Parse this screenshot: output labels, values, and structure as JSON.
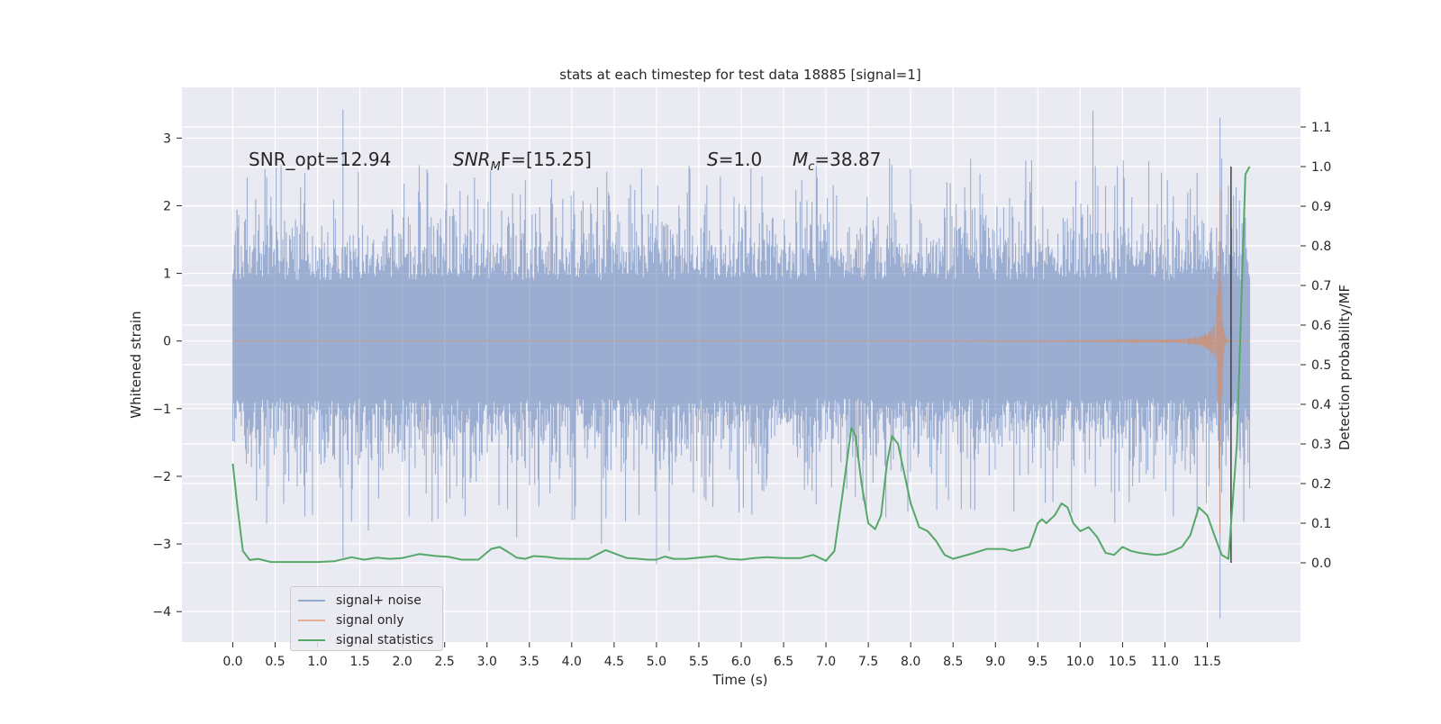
{
  "chart_data": {
    "type": "line",
    "title": "stats at each timestep for test data 18885 [signal=1]",
    "xlabel": "Time (s)",
    "ylabel_left": "Whitened strain",
    "ylabel_right": "Detection probability/MF",
    "xlim": [
      -0.6,
      12.6
    ],
    "ylim_left": [
      -4.45,
      3.75
    ],
    "ylim_right": [
      -0.2,
      1.2
    ],
    "x_ticks": [
      "0.0",
      "0.5",
      "1.0",
      "1.5",
      "2.0",
      "2.5",
      "3.0",
      "3.5",
      "4.0",
      "4.5",
      "5.0",
      "5.5",
      "6.0",
      "6.5",
      "7.0",
      "7.5",
      "8.0",
      "8.5",
      "9.0",
      "9.5",
      "10.0",
      "10.5",
      "11.0",
      "11.5"
    ],
    "y_ticks_left": [
      "3",
      "2",
      "1",
      "0",
      "−1",
      "−2",
      "−3",
      "−4"
    ],
    "y_ticks_right": [
      "1.1",
      "1.0",
      "0.9",
      "0.8",
      "0.7",
      "0.6",
      "0.5",
      "0.4",
      "0.3",
      "0.2",
      "0.1",
      "0.0"
    ],
    "grid": true,
    "legend_placement": "lower-left",
    "annotations": {
      "snr_opt": "SNR_opt=12.94",
      "snr_mf_main": "SNR",
      "snr_mf_sub": "M",
      "snr_mf_rest": "F=[15.25]",
      "s_main": "S",
      "s_rest": "=1.0",
      "mc_main": "M",
      "mc_sub": "c",
      "mc_rest": "=38.87"
    },
    "series": [
      {
        "name": "signal+ noise",
        "color": "#4c72b0",
        "axis": "left",
        "description_values": {
          "t_start": 0.0,
          "t_end": 12.0,
          "typical_range": [
            -1.3,
            1.5
          ],
          "max": 3.42,
          "min": -4.1
        },
        "spikes": [
          [
            1.3,
            3.42
          ],
          [
            1.3,
            -3.2
          ],
          [
            1.6,
            -2.8
          ],
          [
            4.35,
            -3.0
          ],
          [
            5.0,
            -3.3
          ],
          [
            5.15,
            -3.1
          ],
          [
            10.15,
            3.4
          ],
          [
            11.65,
            3.3
          ],
          [
            11.65,
            -4.1
          ],
          [
            0.4,
            -2.7
          ],
          [
            7.75,
            2.7
          ],
          [
            2.2,
            2.6
          ],
          [
            1.3,
            2.3
          ],
          [
            3.35,
            -2.9
          ]
        ]
      },
      {
        "name": "signal only",
        "color": "#dd8452",
        "axis": "left",
        "description_values": {
          "t_start": 0.0,
          "t_end": 12.0,
          "peak_time": 11.65,
          "peak_amplitude": 3.0
        }
      },
      {
        "name": "signal statistics",
        "color": "#55a868",
        "axis": "right",
        "x": [
          0.0,
          0.05,
          0.12,
          0.2,
          0.3,
          0.45,
          0.6,
          0.8,
          1.0,
          1.2,
          1.4,
          1.55,
          1.7,
          1.85,
          2.0,
          2.2,
          2.4,
          2.55,
          2.7,
          2.9,
          3.05,
          3.15,
          3.25,
          3.35,
          3.45,
          3.55,
          3.7,
          3.85,
          4.0,
          4.2,
          4.4,
          4.55,
          4.65,
          4.75,
          4.9,
          5.0,
          5.1,
          5.2,
          5.35,
          5.5,
          5.7,
          5.85,
          6.0,
          6.15,
          6.3,
          6.5,
          6.7,
          6.85,
          7.0,
          7.1,
          7.2,
          7.3,
          7.35,
          7.42,
          7.5,
          7.58,
          7.65,
          7.72,
          7.78,
          7.85,
          7.9,
          8.0,
          8.1,
          8.2,
          8.3,
          8.4,
          8.5,
          8.6,
          8.75,
          8.9,
          9.0,
          9.1,
          9.2,
          9.3,
          9.4,
          9.5,
          9.55,
          9.6,
          9.7,
          9.78,
          9.85,
          9.92,
          10.0,
          10.1,
          10.2,
          10.3,
          10.4,
          10.5,
          10.6,
          10.7,
          10.8,
          10.9,
          11.0,
          11.1,
          11.2,
          11.3,
          11.4,
          11.5,
          11.6,
          11.67,
          11.75,
          11.85,
          11.95,
          12.0
        ],
        "y": [
          0.25,
          0.15,
          0.03,
          0.007,
          0.01,
          0.002,
          0.002,
          0.002,
          0.002,
          0.004,
          0.014,
          0.008,
          0.013,
          0.01,
          0.012,
          0.022,
          0.017,
          0.015,
          0.008,
          0.008,
          0.035,
          0.04,
          0.027,
          0.013,
          0.01,
          0.017,
          0.015,
          0.011,
          0.01,
          0.01,
          0.032,
          0.02,
          0.012,
          0.011,
          0.008,
          0.008,
          0.016,
          0.01,
          0.01,
          0.013,
          0.017,
          0.01,
          0.008,
          0.012,
          0.014,
          0.012,
          0.012,
          0.02,
          0.005,
          0.03,
          0.18,
          0.34,
          0.32,
          0.2,
          0.1,
          0.085,
          0.12,
          0.25,
          0.32,
          0.3,
          0.25,
          0.15,
          0.09,
          0.08,
          0.055,
          0.02,
          0.01,
          0.016,
          0.025,
          0.035,
          0.035,
          0.035,
          0.03,
          0.035,
          0.04,
          0.1,
          0.11,
          0.1,
          0.12,
          0.15,
          0.14,
          0.1,
          0.08,
          0.09,
          0.065,
          0.025,
          0.02,
          0.04,
          0.03,
          0.025,
          0.022,
          0.02,
          0.022,
          0.03,
          0.04,
          0.07,
          0.14,
          0.12,
          0.06,
          0.02,
          0.01,
          0.3,
          0.98,
          1.0
        ]
      }
    ]
  }
}
